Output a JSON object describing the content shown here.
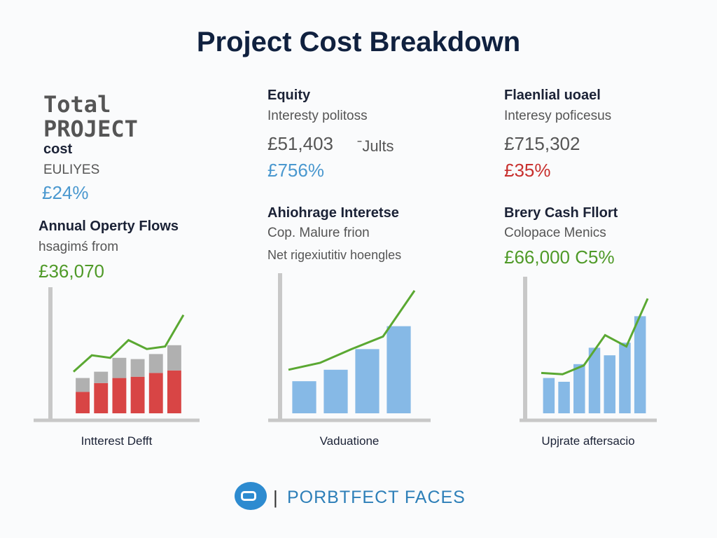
{
  "header": {
    "title": "Project Cost Breakdown"
  },
  "blocks": [
    {
      "lines": [
        "Total",
        "PROJECT",
        "cost",
        "EULIYES",
        "£24%"
      ]
    },
    {
      "lines": [
        "Equity",
        "Interesty politoss",
        "£51,403",
        "ˉJults",
        "£756%"
      ]
    },
    {
      "lines": [
        "Flaenlial uoael",
        "Interesy poficesus",
        "£715,302",
        "£35%"
      ]
    },
    {
      "lines": [
        "Annual Operty Flows",
        "hsagimś from",
        "£36,070"
      ]
    },
    {
      "lines": [
        "Ahiohrage Interetse",
        "Cop. Malure frion",
        "Net rigexiutitiv hoengles"
      ]
    },
    {
      "lines": [
        "Brery Cash Fllort",
        "Colopace Menics",
        "£66,000 C5%"
      ]
    }
  ],
  "chart_data": [
    {
      "type": "stacked-bar-line",
      "caption": "Intterest Defft",
      "ylim": [
        0,
        100
      ],
      "series": [
        {
          "color": "#d84545",
          "values": [
            17,
            24,
            28,
            29,
            32,
            34
          ]
        },
        {
          "color": "#b0b0b0",
          "values": [
            11,
            9,
            16,
            14,
            15,
            20
          ]
        },
        {
          "kind": "line",
          "color": "#5aa832",
          "values": [
            33,
            46,
            44,
            58,
            51,
            53,
            78
          ]
        }
      ]
    },
    {
      "type": "bar-line",
      "caption": "Vaduatione",
      "ylim": [
        0,
        110
      ],
      "series": [
        {
          "color": "#86b9e6",
          "values": [
            28,
            38,
            56,
            76
          ]
        },
        {
          "kind": "line",
          "color": "#5aa832",
          "values": [
            38,
            44,
            56,
            67,
            107
          ]
        }
      ]
    },
    {
      "type": "bar-line",
      "caption": "Upjrate aftersacio",
      "ylim": [
        0,
        100
      ],
      "series": [
        {
          "color": "#86b9e6",
          "values": [
            28,
            25,
            39,
            52,
            46,
            56,
            77
          ]
        },
        {
          "kind": "line",
          "color": "#5aa832",
          "values": [
            32,
            31,
            38,
            62,
            53,
            91
          ]
        }
      ]
    }
  ],
  "footer": {
    "brand": "PORBTFECT FACES"
  }
}
